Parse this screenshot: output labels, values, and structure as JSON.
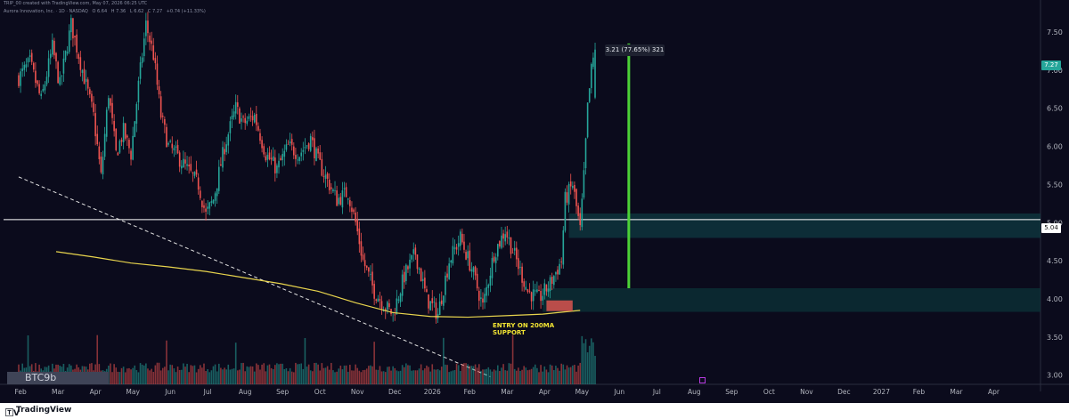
{
  "header": {
    "credit": "TRIP_00 created with TradingView.com, May 07, 2026 06:25 UTC",
    "symbol_line": "Aurora Innovation, Inc. · 1D · NASDAQ",
    "ohlc": [
      "O 6.64",
      "H 7.36",
      "L 6.62",
      "C 7.27",
      "+0.74 (+11.33%)"
    ]
  },
  "measure_label": "3.21 (77.65%) 321",
  "price_tags": {
    "last": "7.27",
    "level": "5.04"
  },
  "annotation": {
    "line1": "ENTRY ON 200MA",
    "line2": "SUPPORT"
  },
  "watermark_badge": "BTC9b",
  "footer": {
    "logo_mark": "🅃V",
    "brand": "TradingView"
  },
  "colors": {
    "background": "#0b0b1c",
    "up": "#26a69a",
    "down": "#ef5350",
    "ma200": "#e8d44d",
    "measure": "#4cd137",
    "level": "#ffffff"
  },
  "chart_data": {
    "type": "candlestick",
    "ylim": [
      2.88,
      7.85
    ],
    "y_ticks": [
      "7.50",
      "7.00",
      "6.50",
      "6.00",
      "5.50",
      "5.00",
      "4.50",
      "4.00",
      "3.50",
      "3.00"
    ],
    "x_ticks": [
      "Feb",
      "Mar",
      "Apr",
      "May",
      "Jun",
      "Jul",
      "Aug",
      "Sep",
      "Oct",
      "Nov",
      "Dec",
      "2026",
      "Feb",
      "Mar",
      "Apr",
      "May",
      "Jun",
      "Jul",
      "Aug",
      "Sep",
      "Oct",
      "Nov",
      "Dec",
      "2027",
      "Feb",
      "Mar",
      "Apr"
    ],
    "x_range_months": [
      0,
      27.3
    ],
    "close_path": [
      [
        0.0,
        6.9
      ],
      [
        0.3,
        7.1
      ],
      [
        0.6,
        6.6
      ],
      [
        0.9,
        7.3
      ],
      [
        1.1,
        6.8
      ],
      [
        1.4,
        7.6
      ],
      [
        1.7,
        7.0
      ],
      [
        2.0,
        6.4
      ],
      [
        2.2,
        5.6
      ],
      [
        2.4,
        6.7
      ],
      [
        2.6,
        5.9
      ],
      [
        2.8,
        6.2
      ],
      [
        3.0,
        5.9
      ],
      [
        3.2,
        6.8
      ],
      [
        3.4,
        7.6
      ],
      [
        3.6,
        7.2
      ],
      [
        3.8,
        6.4
      ],
      [
        4.0,
        6.0
      ],
      [
        4.2,
        5.9
      ],
      [
        4.5,
        5.7
      ],
      [
        4.8,
        5.5
      ],
      [
        5.0,
        5.1
      ],
      [
        5.2,
        5.3
      ],
      [
        5.5,
        6.0
      ],
      [
        5.8,
        6.5
      ],
      [
        6.0,
        6.3
      ],
      [
        6.3,
        6.4
      ],
      [
        6.6,
        5.9
      ],
      [
        6.9,
        5.7
      ],
      [
        7.2,
        6.0
      ],
      [
        7.5,
        5.9
      ],
      [
        7.8,
        6.1
      ],
      [
        8.0,
        5.8
      ],
      [
        8.2,
        5.6
      ],
      [
        8.5,
        5.3
      ],
      [
        8.8,
        5.4
      ],
      [
        9.0,
        5.0
      ],
      [
        9.2,
        4.5
      ],
      [
        9.5,
        4.1
      ],
      [
        9.8,
        3.9
      ],
      [
        10.0,
        3.8
      ],
      [
        10.3,
        4.3
      ],
      [
        10.6,
        4.6
      ],
      [
        10.9,
        4.0
      ],
      [
        11.2,
        3.8
      ],
      [
        11.5,
        4.5
      ],
      [
        11.8,
        4.8
      ],
      [
        12.1,
        4.4
      ],
      [
        12.4,
        3.9
      ],
      [
        12.7,
        4.6
      ],
      [
        13.0,
        4.9
      ],
      [
        13.3,
        4.5
      ],
      [
        13.6,
        4.1
      ],
      [
        13.9,
        4.0
      ],
      [
        14.2,
        4.2
      ],
      [
        14.5,
        4.5
      ],
      [
        14.6,
        5.3
      ],
      [
        14.8,
        5.5
      ],
      [
        15.0,
        4.9
      ],
      [
        15.1,
        5.6
      ],
      [
        15.2,
        6.5
      ],
      [
        15.3,
        7.0
      ],
      [
        15.4,
        7.27
      ]
    ],
    "volume": {
      "baseline": 0.15,
      "max": 1.0
    },
    "ma200": [
      [
        1.0,
        4.62
      ],
      [
        2.0,
        4.55
      ],
      [
        3.0,
        4.47
      ],
      [
        4.0,
        4.42
      ],
      [
        5.0,
        4.36
      ],
      [
        6.0,
        4.28
      ],
      [
        7.0,
        4.2
      ],
      [
        8.0,
        4.1
      ],
      [
        9.0,
        3.95
      ],
      [
        10.0,
        3.82
      ],
      [
        11.0,
        3.77
      ],
      [
        12.0,
        3.76
      ],
      [
        13.0,
        3.78
      ],
      [
        14.0,
        3.8
      ],
      [
        15.0,
        3.85
      ]
    ],
    "trendline": {
      "from": [
        0.0,
        5.6
      ],
      "to": [
        12.6,
        2.98
      ]
    },
    "level_line": 5.04,
    "zones": [
      {
        "x0": 14.7,
        "x1": 27.3,
        "y0": 4.8,
        "y1": 5.12,
        "kind": "resistance"
      },
      {
        "x0": 14.0,
        "x1": 27.3,
        "y0": 3.83,
        "y1": 4.14,
        "kind": "support"
      }
    ],
    "measure": {
      "x": 16.3,
      "from": 4.14,
      "to": 7.35
    },
    "entry_box": {
      "x0": 14.1,
      "x1": 14.8,
      "y0": 3.84,
      "y1": 3.98
    }
  }
}
